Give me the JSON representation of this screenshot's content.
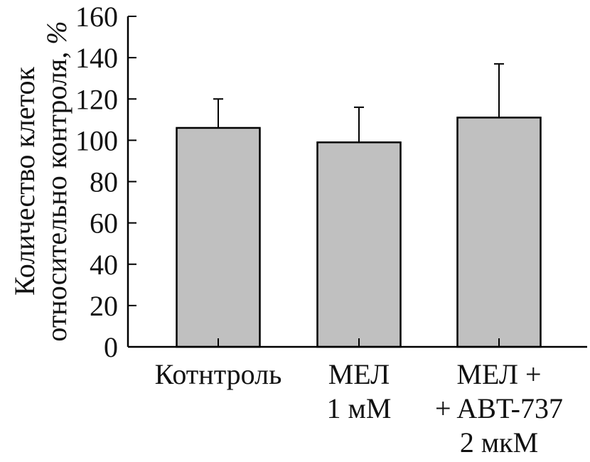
{
  "chart_data": {
    "type": "bar",
    "title": "",
    "ylabel": "Количество клеток",
    "ylabel_line2": "относительно контроля, ",
    "ylabel_unit": "%",
    "xlabel": "",
    "ylim": [
      0,
      160
    ],
    "yticks": [
      "0",
      "20",
      "40",
      "60",
      "80",
      "100",
      "120",
      "140",
      "160"
    ],
    "categories": [
      {
        "lines": [
          "Котнтроль"
        ]
      },
      {
        "lines": [
          "МЕЛ",
          "1 мМ"
        ]
      },
      {
        "lines": [
          "МЕЛ +",
          "+ ABT-737",
          "2 мкМ"
        ]
      }
    ],
    "values": [
      106,
      99,
      111
    ],
    "errors": [
      14,
      17,
      26
    ],
    "bar_color": "#c0c0c0",
    "bar_stroke": "#000000",
    "grid": false,
    "legend": "none"
  }
}
